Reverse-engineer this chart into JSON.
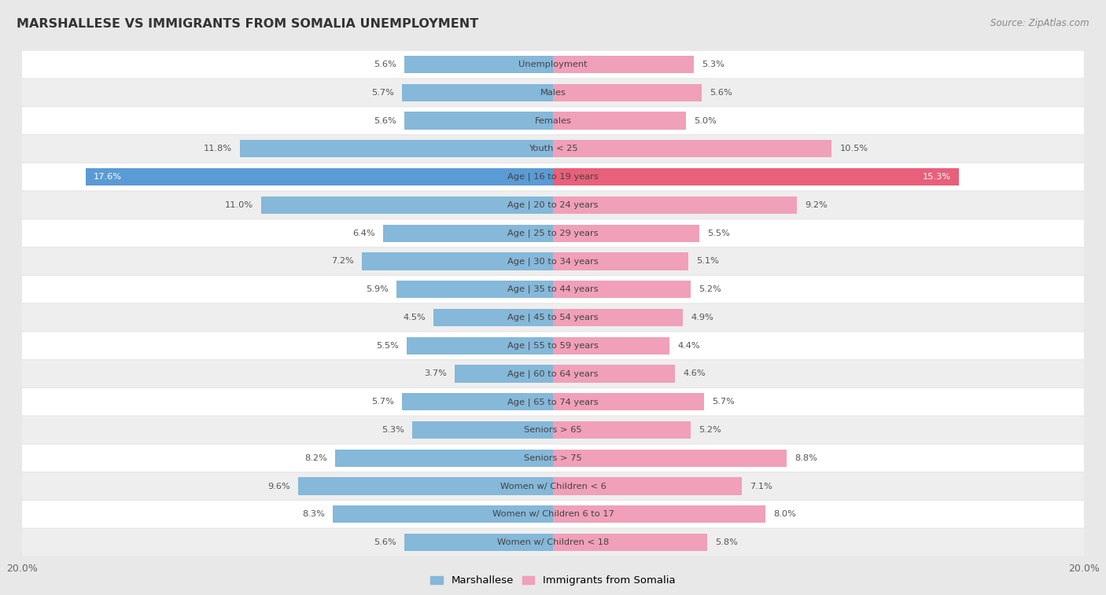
{
  "title": "MARSHALLESE VS IMMIGRANTS FROM SOMALIA UNEMPLOYMENT",
  "source": "Source: ZipAtlas.com",
  "categories": [
    "Unemployment",
    "Males",
    "Females",
    "Youth < 25",
    "Age | 16 to 19 years",
    "Age | 20 to 24 years",
    "Age | 25 to 29 years",
    "Age | 30 to 34 years",
    "Age | 35 to 44 years",
    "Age | 45 to 54 years",
    "Age | 55 to 59 years",
    "Age | 60 to 64 years",
    "Age | 65 to 74 years",
    "Seniors > 65",
    "Seniors > 75",
    "Women w/ Children < 6",
    "Women w/ Children 6 to 17",
    "Women w/ Children < 18"
  ],
  "marshallese": [
    5.6,
    5.7,
    5.6,
    11.8,
    17.6,
    11.0,
    6.4,
    7.2,
    5.9,
    4.5,
    5.5,
    3.7,
    5.7,
    5.3,
    8.2,
    9.6,
    8.3,
    5.6
  ],
  "somalia": [
    5.3,
    5.6,
    5.0,
    10.5,
    15.3,
    9.2,
    5.5,
    5.1,
    5.2,
    4.9,
    4.4,
    4.6,
    5.7,
    5.2,
    8.8,
    7.1,
    8.0,
    5.8
  ],
  "marshallese_color": "#85b8d9",
  "somalia_color": "#f0a0b8",
  "marshallese_highlight_color": "#5b9bd5",
  "somalia_highlight_color": "#e8607a",
  "row_light": "#f5f5f5",
  "row_dark": "#e8e8e8",
  "background_color": "#e8e8e8",
  "axis_max": 20.0,
  "legend_marshallese": "Marshallese",
  "legend_somalia": "Immigrants from Somalia",
  "highlight_index": 4
}
